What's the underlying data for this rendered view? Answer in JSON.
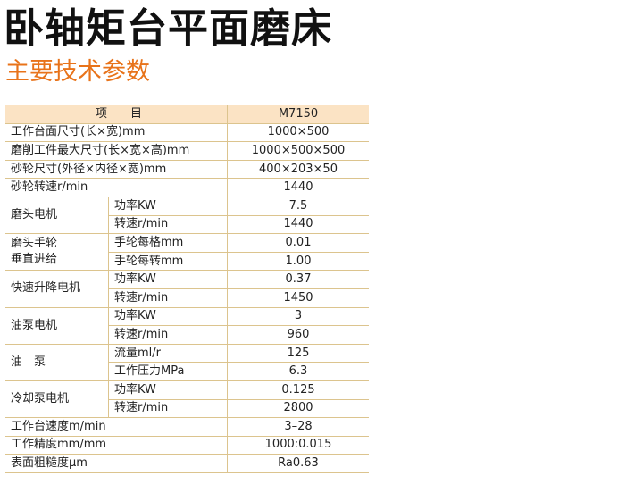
{
  "title": "卧轴矩台平面磨床",
  "subtitle": "主要技术参数",
  "header": {
    "item": "项　　目",
    "model": "M7150"
  },
  "rows": [
    {
      "label": "工作台面尺寸(长×宽)mm",
      "value": "1000×500"
    },
    {
      "label": "磨削工件最大尺寸(长×宽×高)mm",
      "value": "1000×500×500"
    },
    {
      "label": "砂轮尺寸(外径×内径×宽)mm",
      "value": "400×203×50"
    },
    {
      "label": "砂轮转速r/min",
      "value": "1440"
    },
    {
      "group": "磨头电机",
      "items": [
        {
          "label": "功率KW",
          "value": "7.5"
        },
        {
          "label": "转速r/min",
          "value": "1440"
        }
      ]
    },
    {
      "group": "磨头手轮\n垂直进给",
      "items": [
        {
          "label": "手轮每格mm",
          "value": "0.01"
        },
        {
          "label": "手轮每转mm",
          "value": "1.00"
        }
      ]
    },
    {
      "group": "快速升降电机",
      "items": [
        {
          "label": "功率KW",
          "value": "0.37"
        },
        {
          "label": "转速r/min",
          "value": "1450"
        }
      ]
    },
    {
      "group": "油泵电机",
      "items": [
        {
          "label": "功率KW",
          "value": "3"
        },
        {
          "label": "转速r/min",
          "value": "960"
        }
      ]
    },
    {
      "group": "油　泵",
      "items": [
        {
          "label": "流量ml/r",
          "value": "125"
        },
        {
          "label": "工作压力MPa",
          "value": "6.3"
        }
      ]
    },
    {
      "group": "冷却泵电机",
      "items": [
        {
          "label": "功率KW",
          "value": "0.125"
        },
        {
          "label": "转速r/min",
          "value": "2800"
        }
      ]
    },
    {
      "label": "工作台速度m/min",
      "value": "3–28"
    },
    {
      "label": "工作精度mm/mm",
      "value": "1000:0.015"
    },
    {
      "label": "表面粗糙度μm",
      "value": "Ra0.63"
    }
  ]
}
